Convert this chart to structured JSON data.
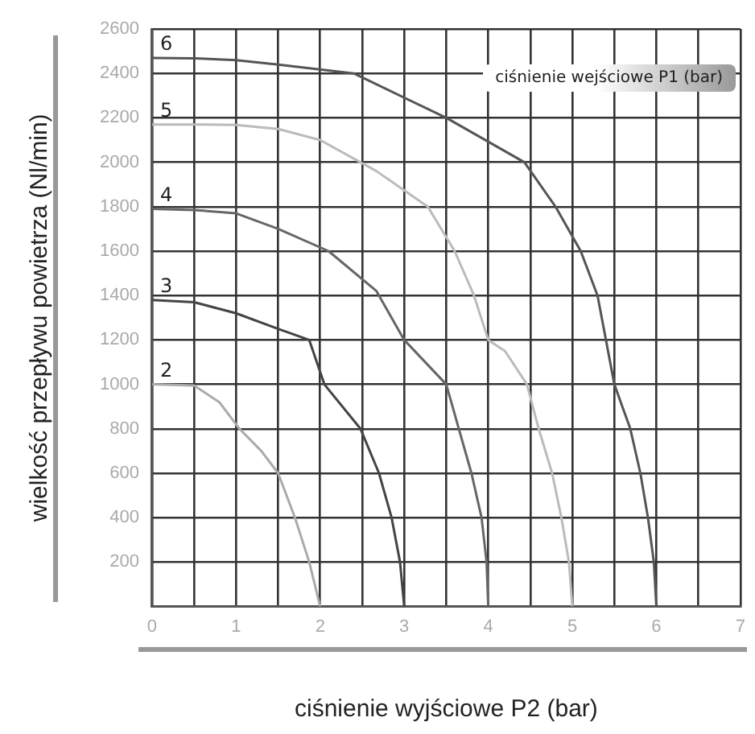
{
  "chart_data": {
    "type": "line",
    "xlabel": "ciśnienie wyjściowe P2 (bar)",
    "ylabel": "wielkość przepływu powietrza (Nl/min)",
    "legend_title": "ciśnienie wejściowe P1 (bar)",
    "xlim": [
      0,
      7
    ],
    "xticks": [
      0,
      {
        "value": 0.5,
        "label": null
      },
      1,
      {
        "value": 1.5,
        "label": null
      },
      2,
      {
        "value": 2.5,
        "label": null
      },
      3,
      {
        "value": 3.5,
        "label": null
      },
      4,
      {
        "value": 4.5,
        "label": null
      },
      5,
      {
        "value": 5.5,
        "label": null
      },
      6,
      {
        "value": 6.5,
        "label": null
      },
      7
    ],
    "ylim": [
      0,
      2600
    ],
    "yticks": [
      {
        "value": 0,
        "label": null
      },
      200,
      400,
      600,
      800,
      1000,
      1200,
      1400,
      1600,
      1800,
      2000,
      2200,
      2400,
      2600
    ],
    "grid": true,
    "legend": false,
    "marker": "none",
    "line_style": "solid",
    "series": [
      {
        "name": "6",
        "color": "#555555",
        "x": [
          0,
          0.5,
          1,
          1.5,
          2.4,
          3.5,
          4.43,
          4.8,
          5.1,
          5.3,
          5.4,
          5.5,
          5.69,
          5.81,
          5.9,
          5.97,
          6.0
        ],
        "values": [
          2470,
          2468,
          2460,
          2440,
          2400,
          2200,
          2000,
          1800,
          1600,
          1400,
          1200,
          1000,
          800,
          600,
          400,
          200,
          0
        ]
      },
      {
        "name": "5",
        "color": "#bbbbbb",
        "x": [
          0,
          0.5,
          1,
          1.5,
          2.0,
          2.67,
          3.28,
          3.6,
          3.83,
          4.0,
          4.2,
          4.46,
          4.6,
          4.76,
          4.87,
          4.96,
          5.0
        ],
        "values": [
          2170,
          2170,
          2168,
          2150,
          2100,
          1960,
          1800,
          1600,
          1400,
          1200,
          1150,
          1000,
          800,
          600,
          400,
          200,
          0
        ]
      },
      {
        "name": "4",
        "color": "#666666",
        "x": [
          0,
          0.5,
          1,
          1.5,
          2.1,
          2.67,
          3.0,
          3.5,
          3.65,
          3.8,
          3.92,
          3.98,
          4.0
        ],
        "values": [
          1790,
          1785,
          1770,
          1700,
          1600,
          1420,
          1200,
          1000,
          800,
          600,
          400,
          200,
          0
        ]
      },
      {
        "name": "3",
        "color": "#444444",
        "x": [
          0,
          0.5,
          1,
          1.5,
          1.87,
          2.05,
          2.48,
          2.7,
          2.85,
          2.95,
          3.0
        ],
        "values": [
          1380,
          1370,
          1320,
          1250,
          1200,
          1000,
          800,
          600,
          400,
          200,
          0
        ]
      },
      {
        "name": "2",
        "color": "#aaaaaa",
        "x": [
          0,
          0.5,
          0.8,
          1.04,
          1.3,
          1.5,
          1.7,
          1.87,
          2.0
        ],
        "values": [
          1000,
          995,
          920,
          800,
          700,
          600,
          400,
          200,
          0
        ]
      }
    ]
  }
}
